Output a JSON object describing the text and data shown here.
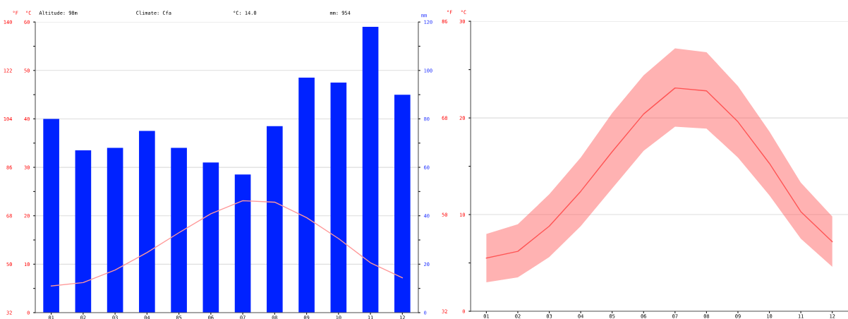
{
  "chart_data": [
    {
      "type": "bar",
      "ylabel": "°C",
      "y2label": "mm",
      "y3label": "°F",
      "annotations": [
        "Altitude: 98m",
        "Climate: Cfa",
        "°C: 14.0",
        "mm: 954"
      ],
      "categories": [
        "01",
        "02",
        "03",
        "04",
        "05",
        "06",
        "07",
        "08",
        "09",
        "10",
        "11",
        "12"
      ],
      "series": [
        {
          "type": "bar",
          "axis": "y2",
          "color": "#0022ff",
          "values": [
            80,
            67,
            68,
            75,
            68,
            62,
            57,
            77,
            97,
            95,
            118,
            90
          ]
        },
        {
          "type": "line",
          "color": "#ff9999",
          "values": [
            5.5,
            6.2,
            8.8,
            12.4,
            16.5,
            20.4,
            23.1,
            22.8,
            19.6,
            15.3,
            10.3,
            7.2
          ]
        }
      ],
      "ylim": [
        0,
        60
      ],
      "yticks": [
        0,
        {
          "value": 5,
          "label": null
        },
        10,
        {
          "value": 15,
          "label": null
        },
        20,
        {
          "value": 25,
          "label": null
        },
        30,
        {
          "value": 35,
          "label": null
        },
        40,
        {
          "value": 45,
          "label": null
        },
        50,
        {
          "value": 55,
          "label": null
        },
        60
      ],
      "y2lim": [
        0,
        120
      ],
      "y2ticks": [
        0,
        {
          "value": 10,
          "label": null
        },
        20,
        {
          "value": 30,
          "label": null
        },
        40,
        {
          "value": 50,
          "label": null
        },
        60,
        {
          "value": 70,
          "label": null
        },
        80,
        {
          "value": 90,
          "label": null
        },
        100,
        {
          "value": 110,
          "label": null
        },
        120
      ],
      "y3lim": [
        32,
        140
      ],
      "y3ticks": [
        32,
        50,
        68,
        86,
        104,
        122,
        140
      ],
      "grid": "y"
    },
    {
      "type": "line",
      "ylabel": "°C",
      "y3label": "°F",
      "categories": [
        "01",
        "02",
        "03",
        "04",
        "05",
        "06",
        "07",
        "08",
        "09",
        "10",
        "11",
        "12"
      ],
      "series": [
        {
          "type": "line",
          "color": "#ff5555",
          "values": [
            5.5,
            6.2,
            8.8,
            12.4,
            16.5,
            20.4,
            23.1,
            22.8,
            19.6,
            15.3,
            10.3,
            7.2
          ],
          "lower": [
            3.0,
            3.5,
            5.6,
            8.8,
            12.7,
            16.6,
            19.1,
            18.9,
            15.9,
            12.0,
            7.5,
            4.6
          ],
          "upper": [
            8.0,
            9.0,
            12.1,
            15.9,
            20.5,
            24.4,
            27.2,
            26.8,
            23.3,
            18.6,
            13.3,
            9.8
          ]
        }
      ],
      "ylim": [
        0,
        30
      ],
      "yticks": [
        0,
        {
          "value": 5,
          "label": null
        },
        10,
        {
          "value": 15,
          "label": null
        },
        20,
        {
          "value": 25,
          "label": null
        },
        30
      ],
      "y3lim": [
        32,
        86
      ],
      "y3ticks": [
        32,
        50,
        68,
        86
      ],
      "grid": "y"
    }
  ]
}
